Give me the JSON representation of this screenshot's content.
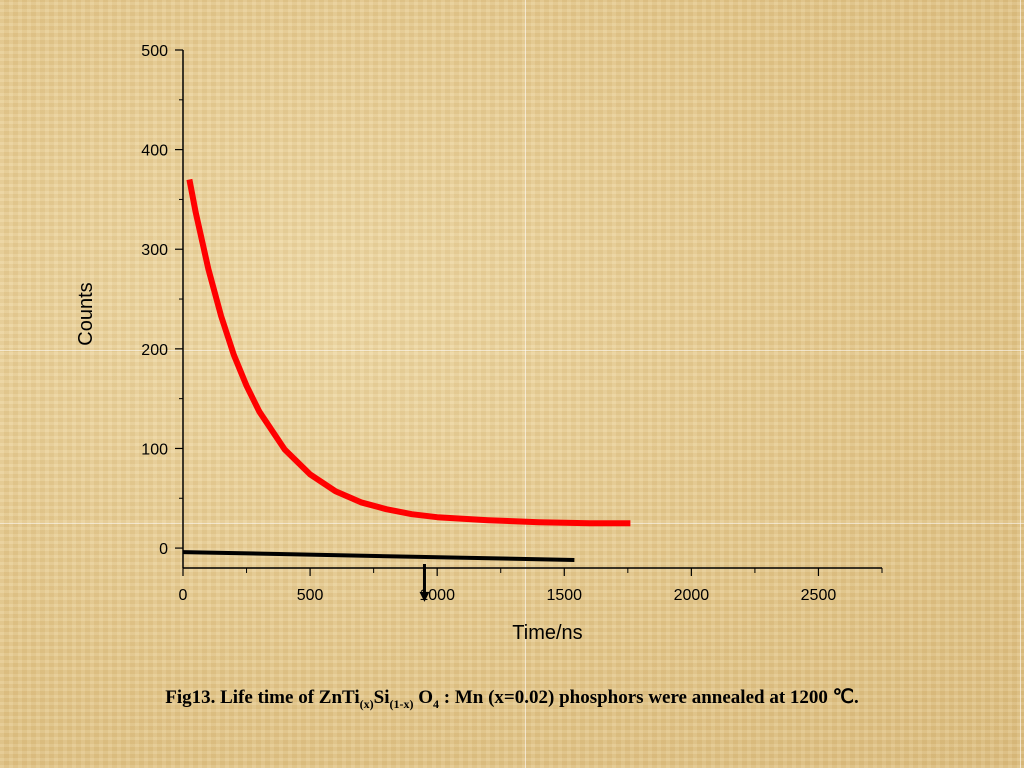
{
  "caption": {
    "part1": "Fig13. Life time of ZnTi",
    "sub1": "(x)",
    "part2": "Si",
    "sub2": "(1-x)",
    "part3": " O",
    "sub3": "4",
    "part4": " : Mn (x=0.02) phosphors were annealed at 1200 ℃."
  },
  "chart_data": {
    "type": "line",
    "xlabel": "Time/ns",
    "ylabel": "Counts",
    "xlim": [
      0,
      2750
    ],
    "ylim": [
      -20,
      500
    ],
    "xticks": [
      0,
      500,
      1000,
      1500,
      2000,
      2500
    ],
    "yticks": [
      0,
      100,
      200,
      300,
      400,
      500
    ],
    "grid": false,
    "series": [
      {
        "color": "#ff0000",
        "x": [
          25,
          50,
          100,
          150,
          200,
          250,
          300,
          400,
          500,
          600,
          700,
          800,
          900,
          1000,
          1200,
          1400,
          1600,
          1760
        ],
        "y": [
          370,
          337,
          280,
          233,
          194,
          163,
          137,
          99,
          74,
          57,
          46,
          39,
          34,
          31,
          28,
          26,
          25,
          25
        ]
      },
      {
        "color": "#000000",
        "x": [
          0,
          1540
        ],
        "y": [
          -4,
          -12
        ]
      }
    ],
    "annotations": [
      {
        "type": "arrow",
        "color": "#000000",
        "x": 950,
        "y_from": -16,
        "y_to": -52
      }
    ]
  }
}
